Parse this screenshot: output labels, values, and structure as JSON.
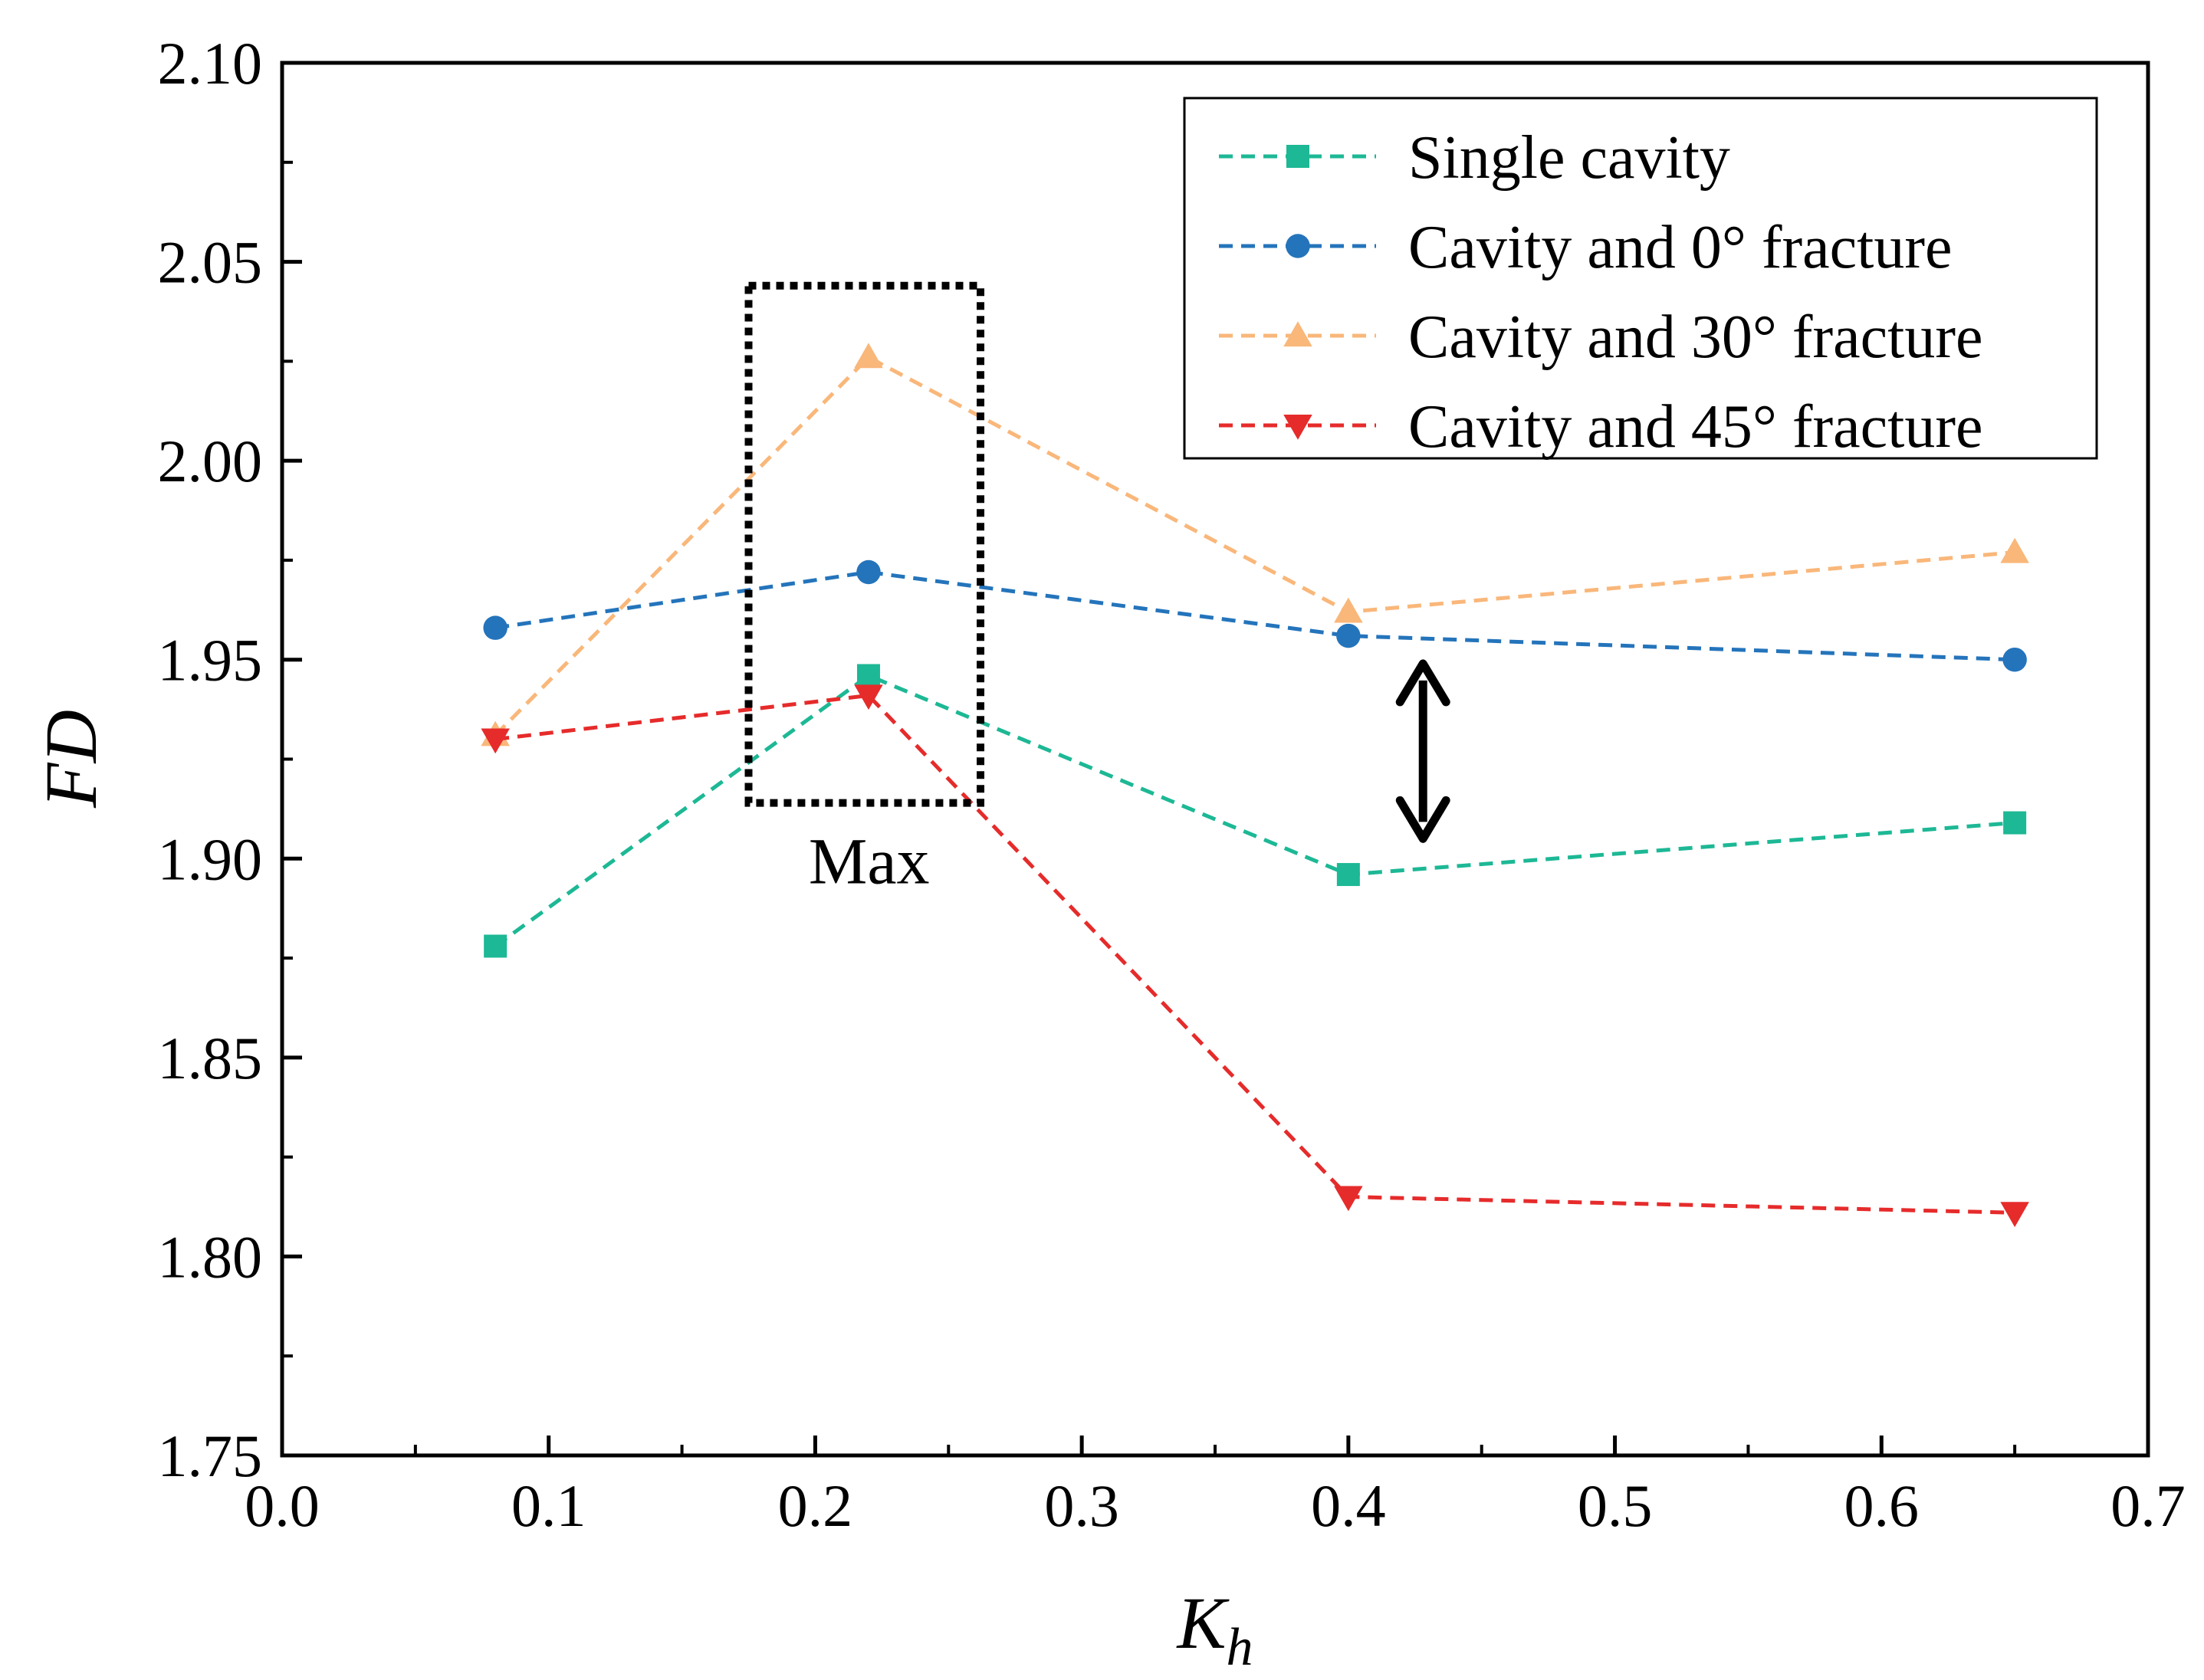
{
  "chart_data": {
    "type": "line",
    "title": "",
    "xlabel": "K",
    "xlabel_subscript": "h",
    "ylabel": "FD",
    "xlim": [
      0.0,
      0.7
    ],
    "ylim": [
      1.75,
      2.1
    ],
    "x_ticks": [
      0.0,
      0.1,
      0.2,
      0.3,
      0.4,
      0.5,
      0.6,
      0.7
    ],
    "x_tick_labels": [
      "0.0",
      "0.1",
      "0.2",
      "0.3",
      "0.4",
      "0.5",
      "0.6",
      "0.7"
    ],
    "y_ticks": [
      1.75,
      1.8,
      1.85,
      1.9,
      1.95,
      2.0,
      2.05,
      2.1
    ],
    "y_tick_labels": [
      "1.75",
      "1.80",
      "1.85",
      "1.90",
      "1.95",
      "2.00",
      "2.05",
      "2.10"
    ],
    "x": [
      0.08,
      0.22,
      0.4,
      0.65
    ],
    "legend_position": "top-right",
    "grid": false,
    "series": [
      {
        "name": "Single cavity",
        "marker": "square",
        "color": "#1db895",
        "values": [
          1.878,
          1.946,
          1.896,
          1.909
        ]
      },
      {
        "name": "Cavity and 0° fracture",
        "marker": "circle",
        "color": "#2474bb",
        "values": [
          1.958,
          1.972,
          1.956,
          1.95
        ]
      },
      {
        "name": "Cavity and 30° fracture",
        "marker": "triangle-up",
        "color": "#f9b77a",
        "values": [
          1.931,
          2.026,
          1.962,
          1.977
        ]
      },
      {
        "name": "Cavity and 45° fracture",
        "marker": "triangle-down",
        "color": "#e62b2b",
        "values": [
          1.93,
          1.941,
          1.815,
          1.811
        ]
      }
    ],
    "annotations": {
      "max_box": {
        "label": "Max",
        "x_range": [
          0.175,
          0.262
        ],
        "y_range": [
          1.914,
          2.044
        ]
      },
      "double_arrow": {
        "x": 0.428,
        "y_range": [
          1.905,
          1.949
        ]
      }
    }
  }
}
